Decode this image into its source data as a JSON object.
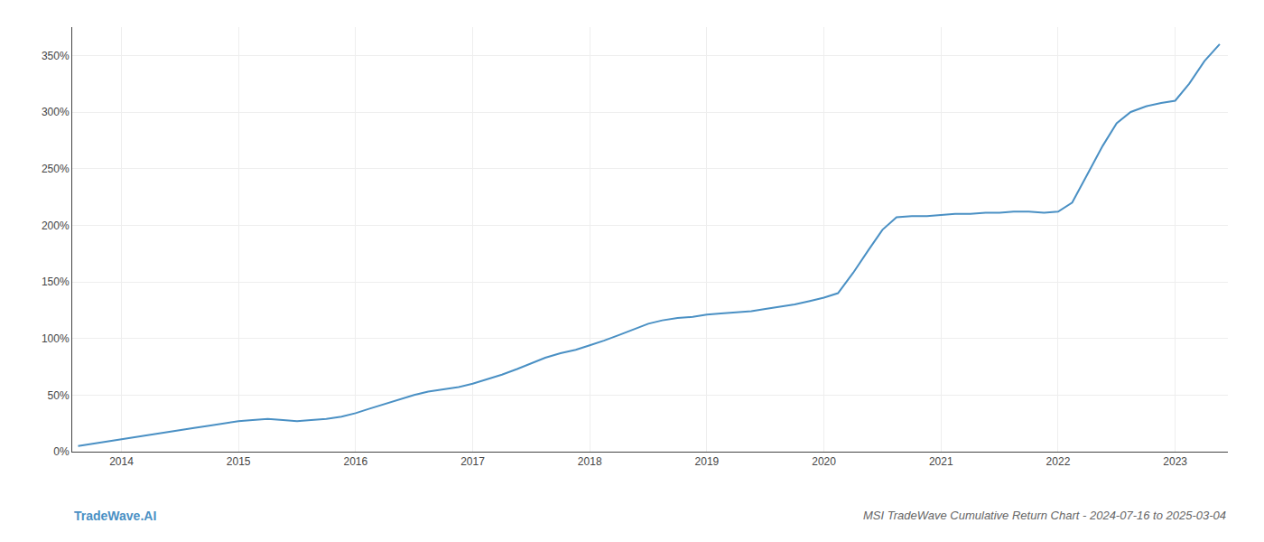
{
  "chart_data": {
    "type": "line",
    "title": "MSI TradeWave Cumulative Return Chart - 2024-07-16 to 2025-03-04",
    "annotations": [
      {
        "text": "TradeWave.AI"
      }
    ],
    "color": "#4a90c4",
    "x": [
      2013.63,
      2013.75,
      2013.88,
      2014.0,
      2014.12,
      2014.25,
      2014.38,
      2014.5,
      2014.62,
      2014.75,
      2014.88,
      2015.0,
      2015.12,
      2015.25,
      2015.38,
      2015.5,
      2015.62,
      2015.75,
      2015.88,
      2016.0,
      2016.12,
      2016.25,
      2016.38,
      2016.5,
      2016.62,
      2016.75,
      2016.88,
      2017.0,
      2017.12,
      2017.25,
      2017.38,
      2017.5,
      2017.62,
      2017.75,
      2017.88,
      2018.0,
      2018.12,
      2018.25,
      2018.38,
      2018.5,
      2018.62,
      2018.75,
      2018.88,
      2019.0,
      2019.12,
      2019.25,
      2019.38,
      2019.5,
      2019.62,
      2019.75,
      2019.88,
      2020.0,
      2020.12,
      2020.25,
      2020.38,
      2020.5,
      2020.62,
      2020.75,
      2020.88,
      2021.0,
      2021.12,
      2021.25,
      2021.38,
      2021.5,
      2021.62,
      2021.75,
      2021.88,
      2022.0,
      2022.12,
      2022.25,
      2022.38,
      2022.5,
      2022.62,
      2022.75,
      2022.88,
      2023.0,
      2023.12,
      2023.25,
      2023.38
    ],
    "values": [
      5,
      7,
      9,
      11,
      13,
      15,
      17,
      19,
      21,
      23,
      25,
      27,
      28,
      29,
      28,
      27,
      28,
      29,
      31,
      34,
      38,
      42,
      46,
      50,
      53,
      55,
      57,
      60,
      64,
      68,
      73,
      78,
      83,
      87,
      90,
      94,
      98,
      103,
      108,
      113,
      116,
      118,
      119,
      121,
      122,
      123,
      124,
      126,
      128,
      130,
      133,
      136,
      140,
      158,
      178,
      196,
      207,
      208,
      208,
      209,
      210,
      210,
      211,
      211,
      212,
      212,
      211,
      212,
      220,
      245,
      270,
      290,
      300,
      305,
      308,
      310,
      325,
      345,
      360
    ],
    "xlim": [
      2013.58,
      2023.45
    ],
    "xticks": [
      2014,
      2015,
      2016,
      2017,
      2018,
      2019,
      2020,
      2021,
      2022,
      2023
    ],
    "ylim": [
      0,
      375
    ],
    "yticks": [
      {
        "value": 0,
        "label": "0%"
      },
      {
        "value": 50,
        "label": "50%"
      },
      {
        "value": 100,
        "label": "100%"
      },
      {
        "value": 150,
        "label": "150%"
      },
      {
        "value": 200,
        "label": "200%"
      },
      {
        "value": 250,
        "label": "250%"
      },
      {
        "value": 300,
        "label": "300%"
      },
      {
        "value": 350,
        "label": "350%"
      }
    ],
    "grid": true
  }
}
